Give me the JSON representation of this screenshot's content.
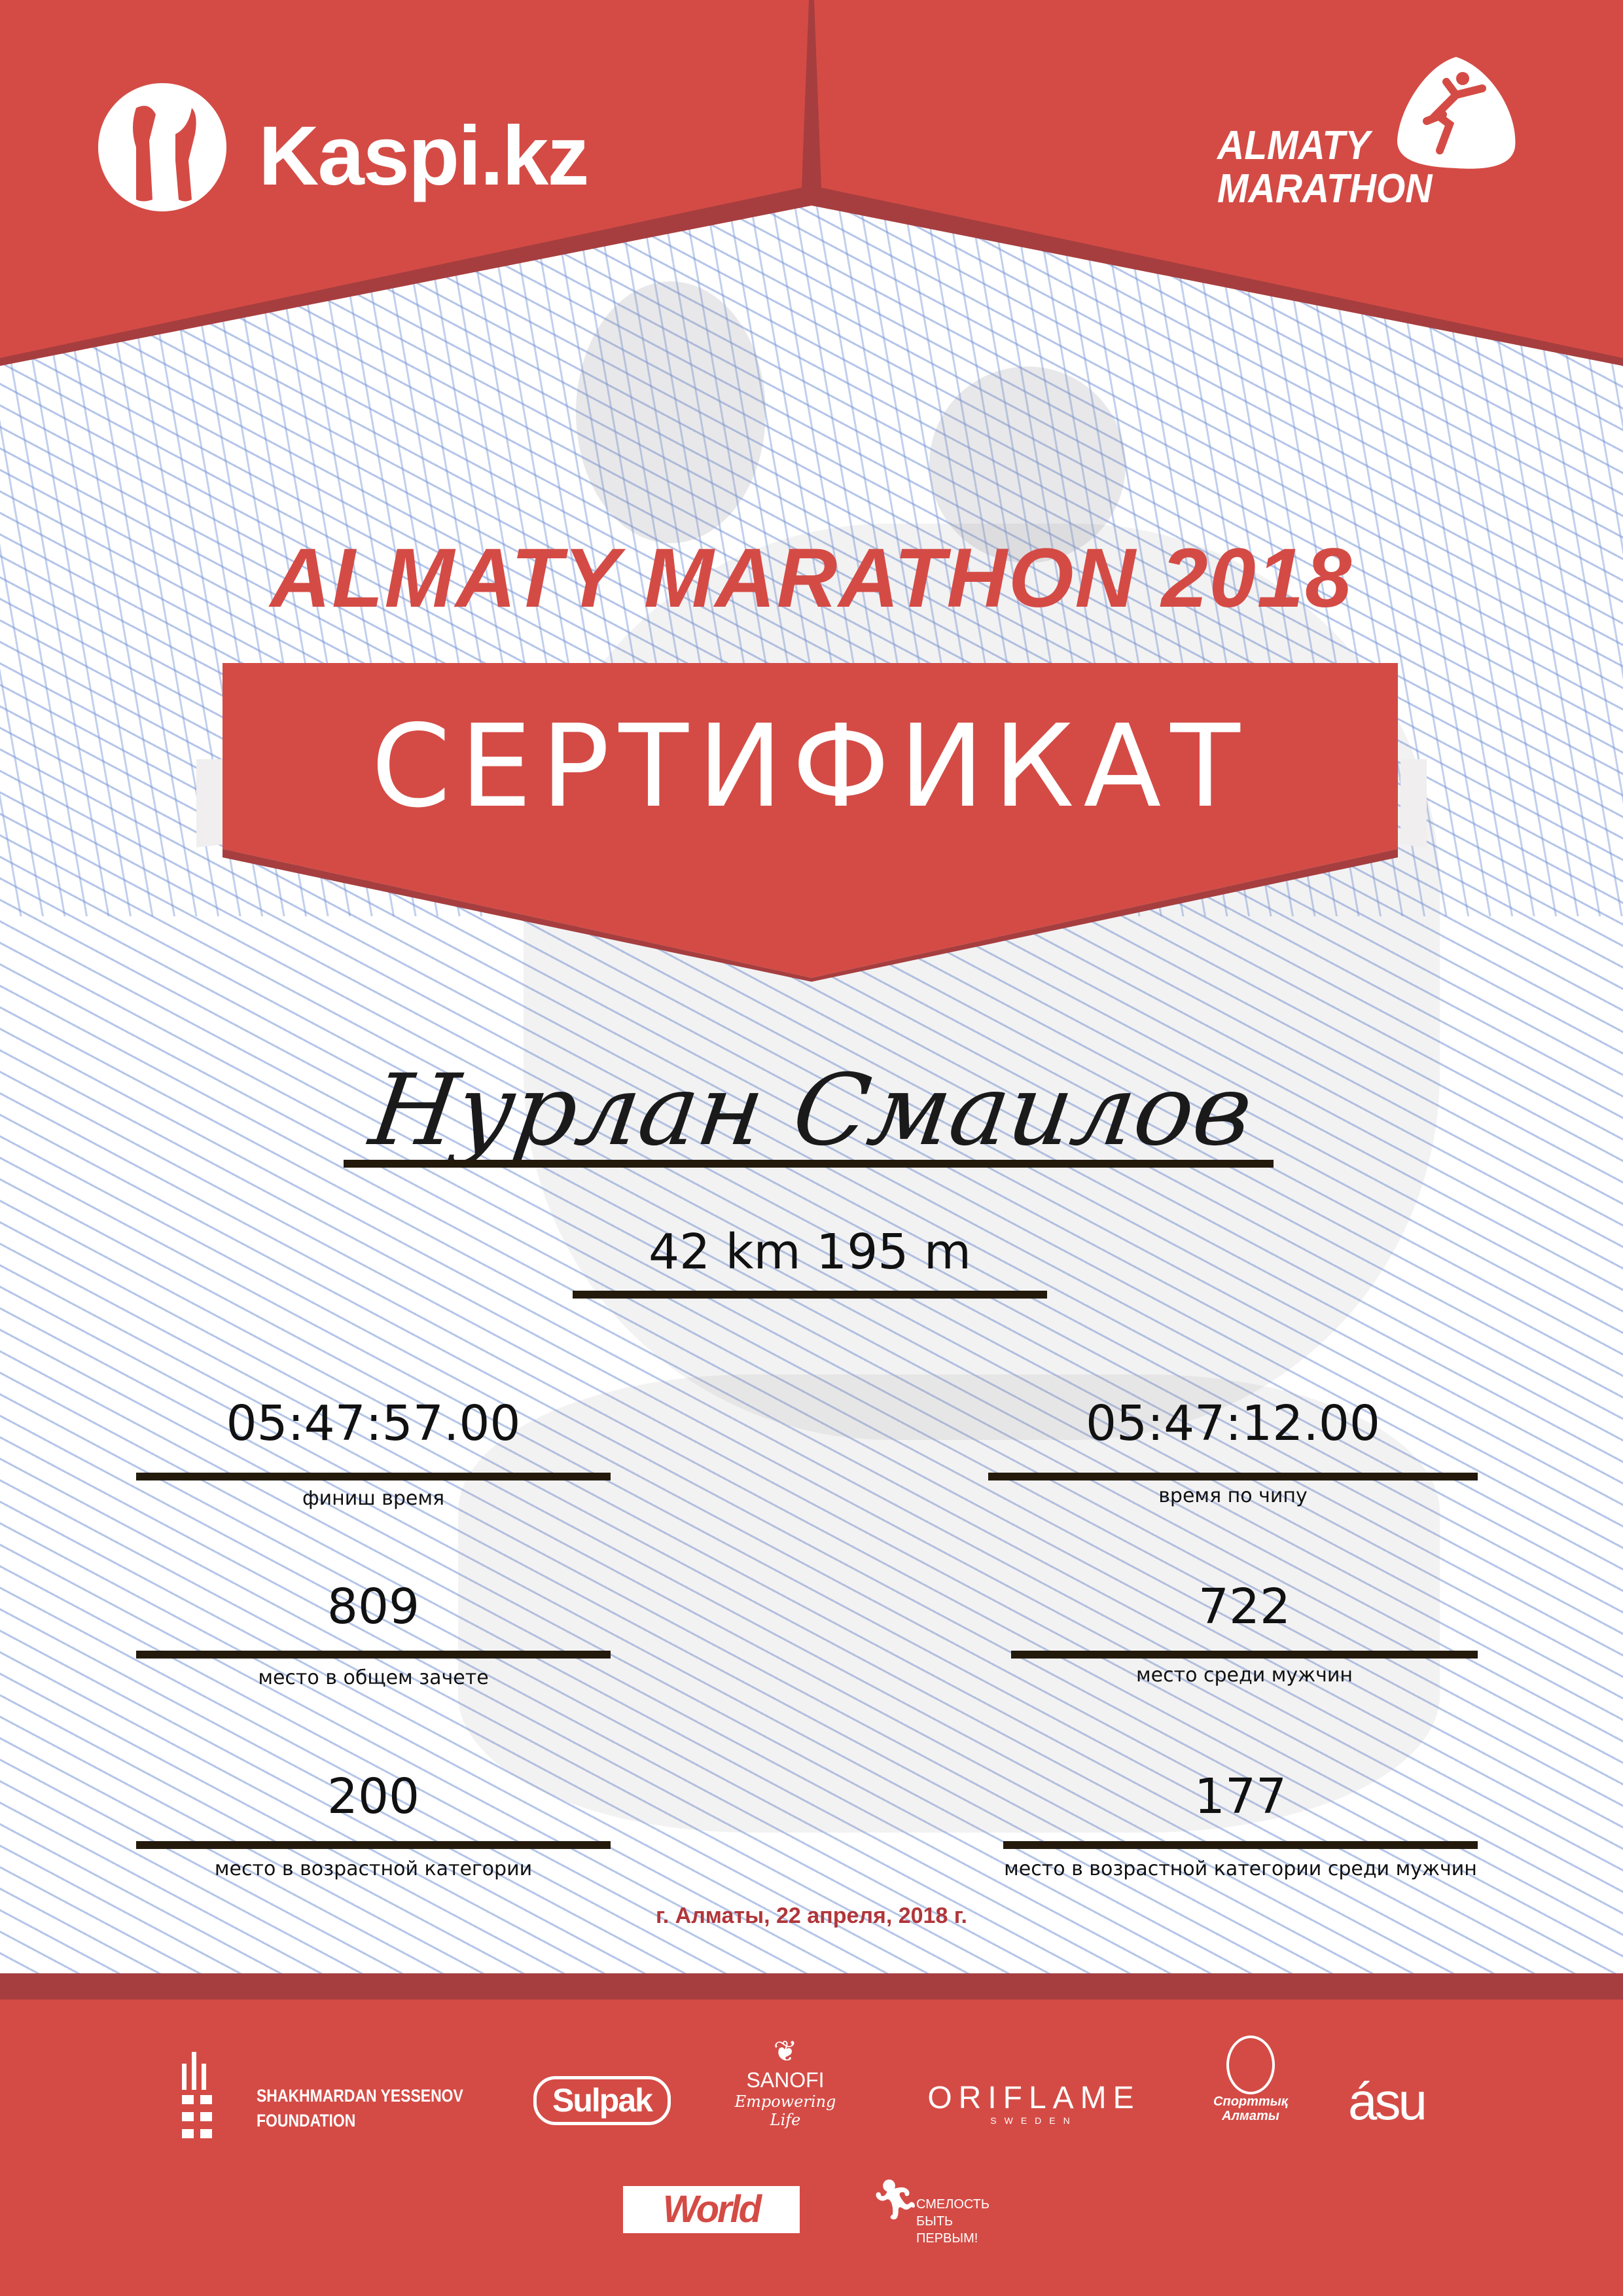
{
  "colors": {
    "brand_red": "#D44B45",
    "dark_red": "#A63E3F",
    "text": "#111111",
    "date_red": "#B0363A"
  },
  "header": {
    "kaspi_logo": "Kaspi.kz",
    "almaty_logo_line1": "ALMATY",
    "almaty_logo_line2": "MARATHON"
  },
  "title": "ALMATY MARATHON 2018",
  "certificate_label": "СЕРТИФИКАТ",
  "participant_name": "Нурлан Смаилов",
  "distance": "42 km 195 m",
  "stats": [
    {
      "value": "05:47:57.00",
      "label": "финиш время"
    },
    {
      "value": "05:47:12.00",
      "label": "время по чипу"
    },
    {
      "value": "809",
      "label": "место в общем зачете"
    },
    {
      "value": "722",
      "label": "место среди мужчин"
    },
    {
      "value": "200",
      "label": "место в возрастной категории"
    },
    {
      "value": "177",
      "label": "место в возрастной категории среди мужчин"
    }
  ],
  "date_place": "г. Алматы, 22 апреля, 2018 г.",
  "sponsors": {
    "yessenov_line1": "SHAKHMARDAN YESSENOV",
    "yessenov_line2": "FOUNDATION",
    "sulpak": "Sulpak",
    "sanofi": "SANOFI",
    "sanofi_tagline": "Empowering Life",
    "oriflame": "ORIFLAME",
    "oriflame_sub": "SWEDEN",
    "sport_almaty_line1": "Спорттық",
    "sport_almaty_line2": "Алматы",
    "asu": "ásu",
    "worldclass": "World Class",
    "smelost_line1": "СМЕЛОСТЬ",
    "smelost_line2": "БЫТЬ",
    "smelost_line3": "ПЕРВЫМ!"
  }
}
